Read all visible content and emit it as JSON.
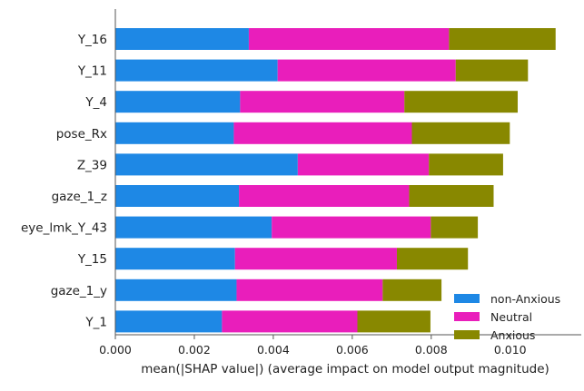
{
  "chart_data": {
    "type": "bar",
    "orientation": "horizontal",
    "stacked": true,
    "categories": [
      "Y_16",
      "Y_11",
      "Y_4",
      "pose_Rx",
      "Z_39",
      "gaze_1_z",
      "eye_lmk_Y_43",
      "Y_15",
      "gaze_1_y",
      "Y_1"
    ],
    "series": [
      {
        "name": "non-Anxious",
        "color": "#1E88E5",
        "values": [
          0.00338,
          0.00411,
          0.00316,
          0.003,
          0.00462,
          0.00313,
          0.00396,
          0.00303,
          0.00307,
          0.0027
        ]
      },
      {
        "name": "Neutral",
        "color": "#E91EBB",
        "values": [
          0.00507,
          0.00451,
          0.00416,
          0.00451,
          0.00332,
          0.00431,
          0.00403,
          0.0041,
          0.0037,
          0.00343
        ]
      },
      {
        "name": "Anxious",
        "color": "#888800",
        "values": [
          0.0027,
          0.00183,
          0.00287,
          0.00248,
          0.00188,
          0.00214,
          0.00119,
          0.0018,
          0.00149,
          0.00185
        ]
      }
    ],
    "xlabel": "mean(|SHAP value|) (average impact on model output magnitude)",
    "xlim": [
      0,
      0.0118
    ],
    "xticks": [
      "0.000",
      "0.002",
      "0.004",
      "0.006",
      "0.008",
      "0.010"
    ],
    "xtick_values": [
      0,
      0.002,
      0.004,
      0.006,
      0.008,
      0.01
    ],
    "grid": false,
    "legend_position": "lower-right"
  }
}
